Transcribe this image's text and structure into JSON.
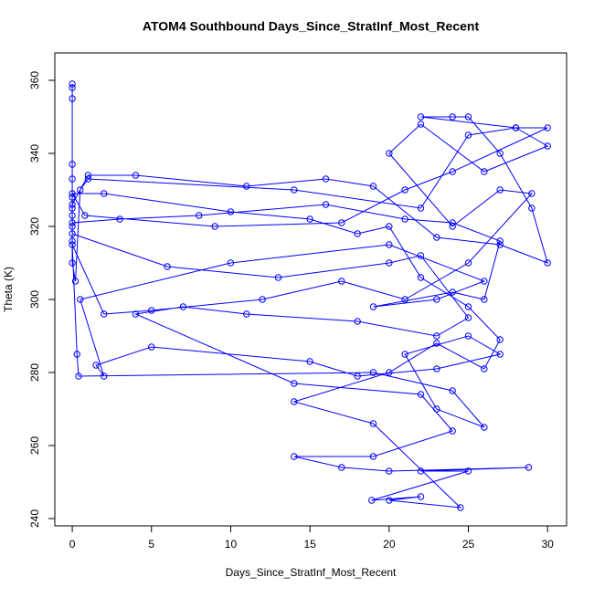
{
  "chart_data": {
    "type": "line",
    "title": "ATOM4 Southbound Days_Since_StratInf_Most_Recent",
    "x_label": "Days_Since_StratInf_Most_Recent",
    "y_label": "Theta (K)",
    "color": "#0000ff",
    "markers": true,
    "xlim": [
      -1.1,
      31.2
    ],
    "ylim": [
      238,
      367.5
    ],
    "xticks": [
      0,
      5,
      10,
      15,
      20,
      25,
      30
    ],
    "yticks": [
      240,
      260,
      280,
      300,
      320,
      340,
      360
    ],
    "x": [
      0,
      0,
      0,
      0,
      0,
      0,
      0,
      0,
      0,
      0,
      0.2,
      0.5,
      1,
      14,
      22,
      25,
      28,
      30,
      26,
      22,
      20,
      24,
      27,
      29,
      25,
      21,
      17,
      12,
      5,
      2,
      0,
      0.3,
      0.4,
      19,
      24,
      26,
      23,
      21,
      25,
      27,
      23,
      18,
      15,
      5,
      1.5,
      2,
      0.5,
      10,
      20,
      26,
      23,
      19,
      24,
      26,
      27,
      24,
      21,
      16,
      8,
      3,
      0,
      0,
      6,
      13,
      20,
      22,
      25,
      23,
      18,
      11,
      7,
      4,
      14,
      22,
      24,
      19,
      14,
      17,
      20,
      28.8,
      22,
      25,
      18.9,
      22,
      20,
      24.5,
      19,
      14,
      20,
      23,
      26,
      27,
      25,
      22,
      20,
      18,
      15,
      10,
      2,
      0,
      0.8,
      9,
      17,
      21,
      24,
      30,
      28,
      22,
      24,
      25,
      27,
      29,
      30,
      27,
      23,
      19,
      16,
      11,
      4,
      1,
      0,
      0
    ],
    "values": [
      359,
      358,
      355,
      337,
      333,
      328,
      325,
      320,
      316,
      310,
      305,
      330,
      333,
      330,
      325,
      345,
      347,
      342,
      335,
      348,
      340,
      320,
      330,
      329,
      310,
      300,
      305,
      300,
      297,
      296,
      315,
      285,
      279,
      280,
      275,
      265,
      270,
      285,
      290,
      285,
      281,
      279,
      283,
      287,
      282,
      279,
      300,
      310,
      315,
      305,
      300,
      298,
      302,
      300,
      316,
      321,
      322,
      326,
      323,
      322,
      321,
      318,
      309,
      306,
      310,
      312,
      295,
      290,
      294,
      296,
      298,
      296,
      277,
      274,
      264,
      257,
      257,
      254,
      253,
      254,
      253,
      253,
      245,
      246,
      245,
      243,
      266,
      272,
      280,
      288,
      281,
      289,
      298,
      306,
      320,
      318,
      322,
      324,
      329,
      329,
      323,
      320,
      321,
      330,
      335,
      347,
      347,
      350,
      350,
      350,
      340,
      325,
      310,
      315,
      317,
      331,
      333,
      331,
      334,
      334,
      326,
      323
    ]
  }
}
